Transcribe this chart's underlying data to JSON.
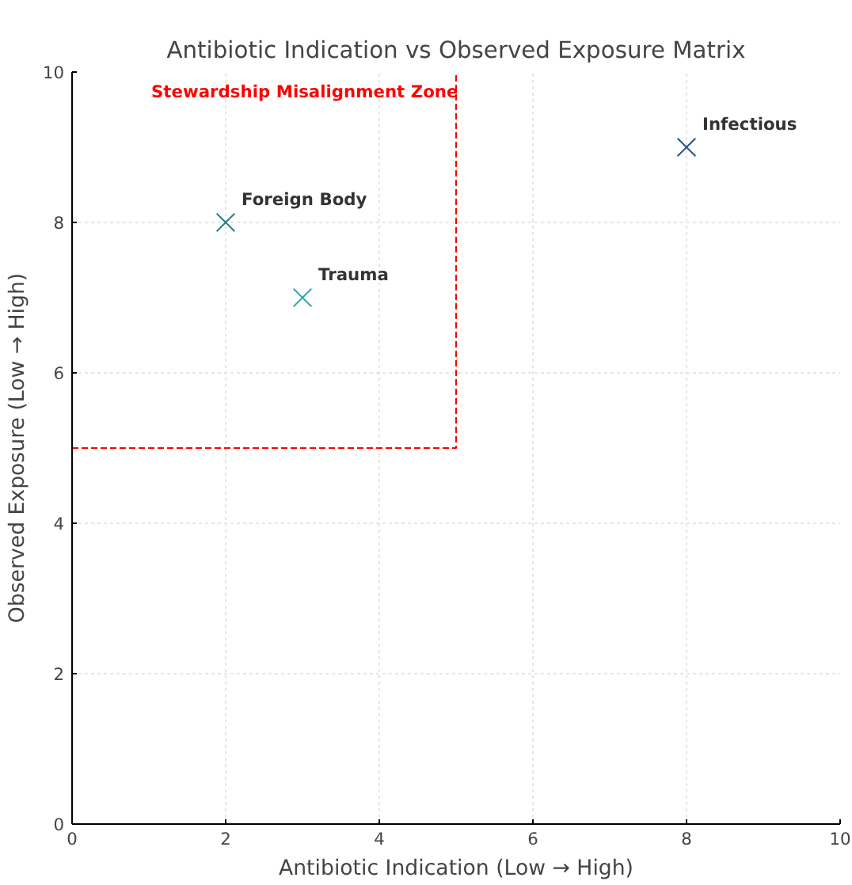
{
  "chart_data": {
    "type": "scatter",
    "title": "Antibiotic Indication vs Observed Exposure Matrix",
    "xlabel": "Antibiotic Indication (Low → High)",
    "ylabel": "Observed Exposure (Low → High)",
    "xlim": [
      0,
      10
    ],
    "ylim": [
      0,
      10
    ],
    "xticks": [
      0,
      2,
      4,
      6,
      8,
      10
    ],
    "yticks": [
      0,
      2,
      4,
      6,
      8,
      10
    ],
    "grid": true,
    "marker": "cross",
    "series": [
      {
        "name": "Foreign Body",
        "color": "#2f7f80",
        "x": [
          2
        ],
        "values": [
          8
        ]
      },
      {
        "name": "Trauma",
        "color": "#3aa5aa",
        "x": [
          3
        ],
        "values": [
          7
        ]
      },
      {
        "name": "Infectious",
        "color": "#2c5582",
        "x": [
          8
        ],
        "values": [
          9
        ]
      },
      {
        "type": "line",
        "color": "#ff0000",
        "line_style": "dashed",
        "marker": "none",
        "x": [
          0,
          5,
          5
        ],
        "values": [
          5,
          5,
          10
        ]
      }
    ],
    "annotations": [
      "Stewardship Misalignment Zone"
    ]
  }
}
